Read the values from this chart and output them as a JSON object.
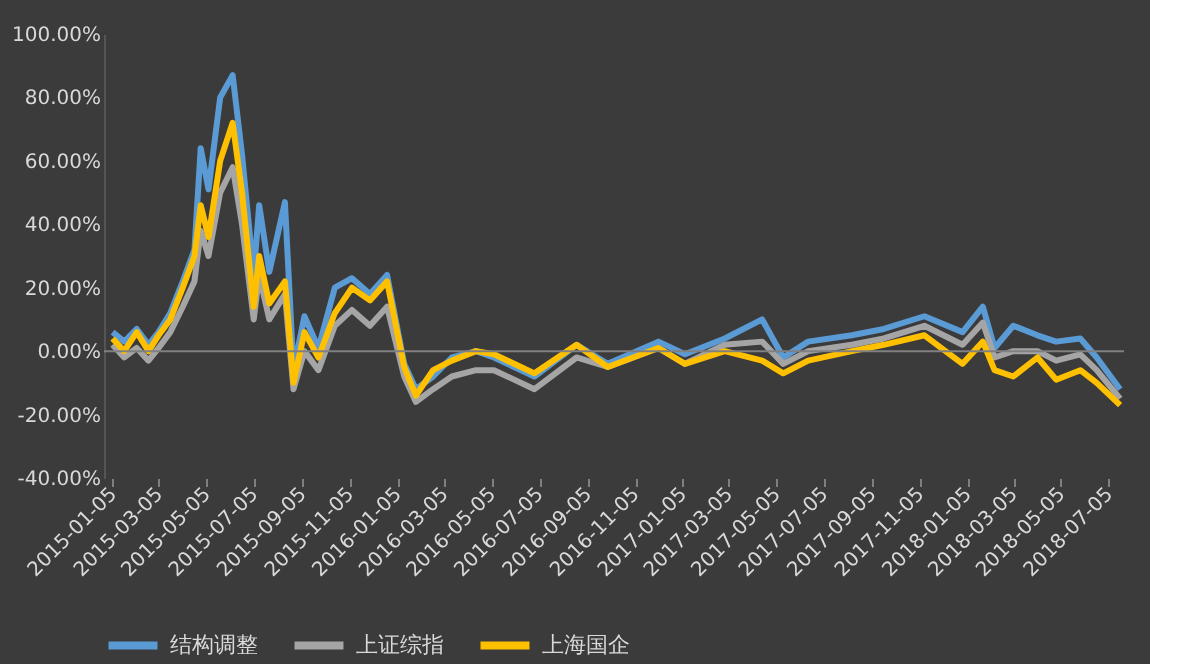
{
  "chart_data": {
    "type": "line",
    "x": [
      "2015-01-05",
      "2015-01-20",
      "2015-02-05",
      "2015-02-20",
      "2015-03-05",
      "2015-03-20",
      "2015-04-05",
      "2015-04-20",
      "2015-04-28",
      "2015-05-08",
      "2015-05-23",
      "2015-06-08",
      "2015-06-20",
      "2015-07-05",
      "2015-07-12",
      "2015-07-25",
      "2015-08-14",
      "2015-08-25",
      "2015-09-08",
      "2015-09-26",
      "2015-10-17",
      "2015-11-08",
      "2015-12-01",
      "2015-12-23",
      "2016-01-14",
      "2016-01-29",
      "2016-02-20",
      "2016-03-15",
      "2016-04-15",
      "2016-05-08",
      "2016-06-29",
      "2016-08-22",
      "2016-10-01",
      "2016-12-05",
      "2017-01-08",
      "2017-02-28",
      "2017-04-17",
      "2017-05-14",
      "2017-06-15",
      "2017-08-10",
      "2017-09-20",
      "2017-11-11",
      "2017-12-30",
      "2018-01-25",
      "2018-02-09",
      "2018-03-05",
      "2018-04-05",
      "2018-04-29",
      "2018-05-30",
      "2018-06-20",
      "2018-07-20"
    ],
    "series": [
      {
        "name": "结构调整",
        "color": "#5b9bd5",
        "values": [
          6,
          3,
          7,
          2,
          6,
          12,
          22,
          32,
          64,
          51,
          80,
          87,
          62,
          24,
          46,
          25,
          47,
          -6,
          11,
          1,
          20,
          23,
          18,
          24,
          -4,
          -12,
          -8,
          -2,
          0,
          -2,
          -8,
          2,
          -4,
          3,
          -1,
          4,
          10,
          -2,
          3,
          5,
          7,
          11,
          6,
          14,
          1,
          8,
          5,
          3,
          4,
          -2,
          -12
        ]
      },
      {
        "name": "上证综指",
        "color": "#a5a5a5",
        "values": [
          2,
          -2,
          1,
          -3,
          1,
          6,
          14,
          22,
          38,
          30,
          50,
          58,
          40,
          10,
          24,
          10,
          18,
          -12,
          0,
          -6,
          8,
          13,
          8,
          14,
          -8,
          -16,
          -12,
          -8,
          -6,
          -6,
          -12,
          -2,
          -5,
          1,
          -4,
          2,
          3,
          -4,
          0,
          2,
          4,
          8,
          2,
          9,
          -2,
          0,
          0,
          -3,
          -1,
          -6,
          -15
        ]
      },
      {
        "name": "上海国企",
        "color": "#ffc000",
        "values": [
          4,
          0,
          6,
          0,
          5,
          10,
          20,
          30,
          46,
          36,
          60,
          72,
          50,
          14,
          30,
          15,
          22,
          -10,
          6,
          -2,
          12,
          20,
          16,
          22,
          -5,
          -14,
          -6,
          -3,
          0,
          -1,
          -7,
          2,
          -5,
          1,
          -4,
          0,
          -3,
          -7,
          -3,
          0,
          2,
          5,
          -4,
          3,
          -6,
          -8,
          -2,
          -9,
          -6,
          -10,
          -17
        ]
      }
    ],
    "xlim": [
      "2014-12-25",
      "2018-07-25"
    ],
    "xticks": [
      "2015-01-05",
      "2015-03-05",
      "2015-05-05",
      "2015-07-05",
      "2015-09-05",
      "2015-11-05",
      "2016-01-05",
      "2016-03-05",
      "2016-05-05",
      "2016-07-05",
      "2016-09-05",
      "2016-11-05",
      "2017-01-05",
      "2017-03-05",
      "2017-05-05",
      "2017-07-05",
      "2017-09-05",
      "2017-11-05",
      "2018-01-05",
      "2018-03-05",
      "2018-05-05",
      "2018-07-05"
    ],
    "ylim": [
      -40,
      100
    ],
    "yticks": [
      {
        "value": -40,
        "label": "-40.00%"
      },
      {
        "value": -20,
        "label": "-20.00%"
      },
      {
        "value": 0,
        "label": "0.00%"
      },
      {
        "value": 20,
        "label": "20.00%"
      },
      {
        "value": 40,
        "label": "40.00%"
      },
      {
        "value": 60,
        "label": "60.00%"
      },
      {
        "value": 80,
        "label": "80.00%"
      },
      {
        "value": 100,
        "label": "100.00%"
      }
    ],
    "ref_lines": [
      {
        "axis": "y",
        "value": 0,
        "color": "#808080"
      }
    ],
    "legend": "bottom",
    "grid": false,
    "line_style": "solid",
    "marker": "none"
  }
}
